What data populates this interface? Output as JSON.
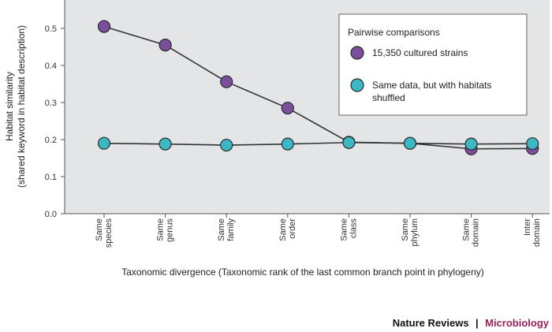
{
  "chart_data": {
    "type": "line",
    "title": "",
    "ylabel": "Habitat similarity",
    "ylabel_sub": "(shared keyword in habitat description)",
    "xlabel": "Taxonomic divergence (Taxonomic rank of the last common branch point in phylogeny)",
    "ylim": [
      0,
      0.6
    ],
    "yticks": [
      "0.0",
      "0.1",
      "0.2",
      "0.3",
      "0.4",
      "0.5"
    ],
    "categories": [
      [
        "Same",
        "species"
      ],
      [
        "Same",
        "genus"
      ],
      [
        "Same",
        "family"
      ],
      [
        "Same",
        "order"
      ],
      [
        "Same",
        "class"
      ],
      [
        "Same",
        "phylum"
      ],
      [
        "Same",
        "domain"
      ],
      [
        "Inter",
        "domain"
      ]
    ],
    "legend_title": "Pairwise comparisons",
    "legend_position": "top-right",
    "grid": false,
    "series": [
      {
        "name": "15,350 cultured strains",
        "color": "#7b4f9e",
        "values": [
          0.505,
          0.455,
          0.356,
          0.285,
          0.193,
          0.19,
          0.175,
          0.176
        ]
      },
      {
        "name": "Same data, but with habitats shuffled",
        "name_lines": [
          "Same data, but with habitats",
          "shuffled"
        ],
        "color": "#3bb8c4",
        "values": [
          0.19,
          0.188,
          0.185,
          0.188,
          0.192,
          0.19,
          0.188,
          0.189
        ]
      }
    ]
  },
  "branding": {
    "publisher": "Nature Reviews",
    "separator": "|",
    "journal": "Microbiology",
    "journal_color": "#9b2159"
  },
  "colors": {
    "plot_background": "#e3e5e7",
    "line": "#333333"
  }
}
